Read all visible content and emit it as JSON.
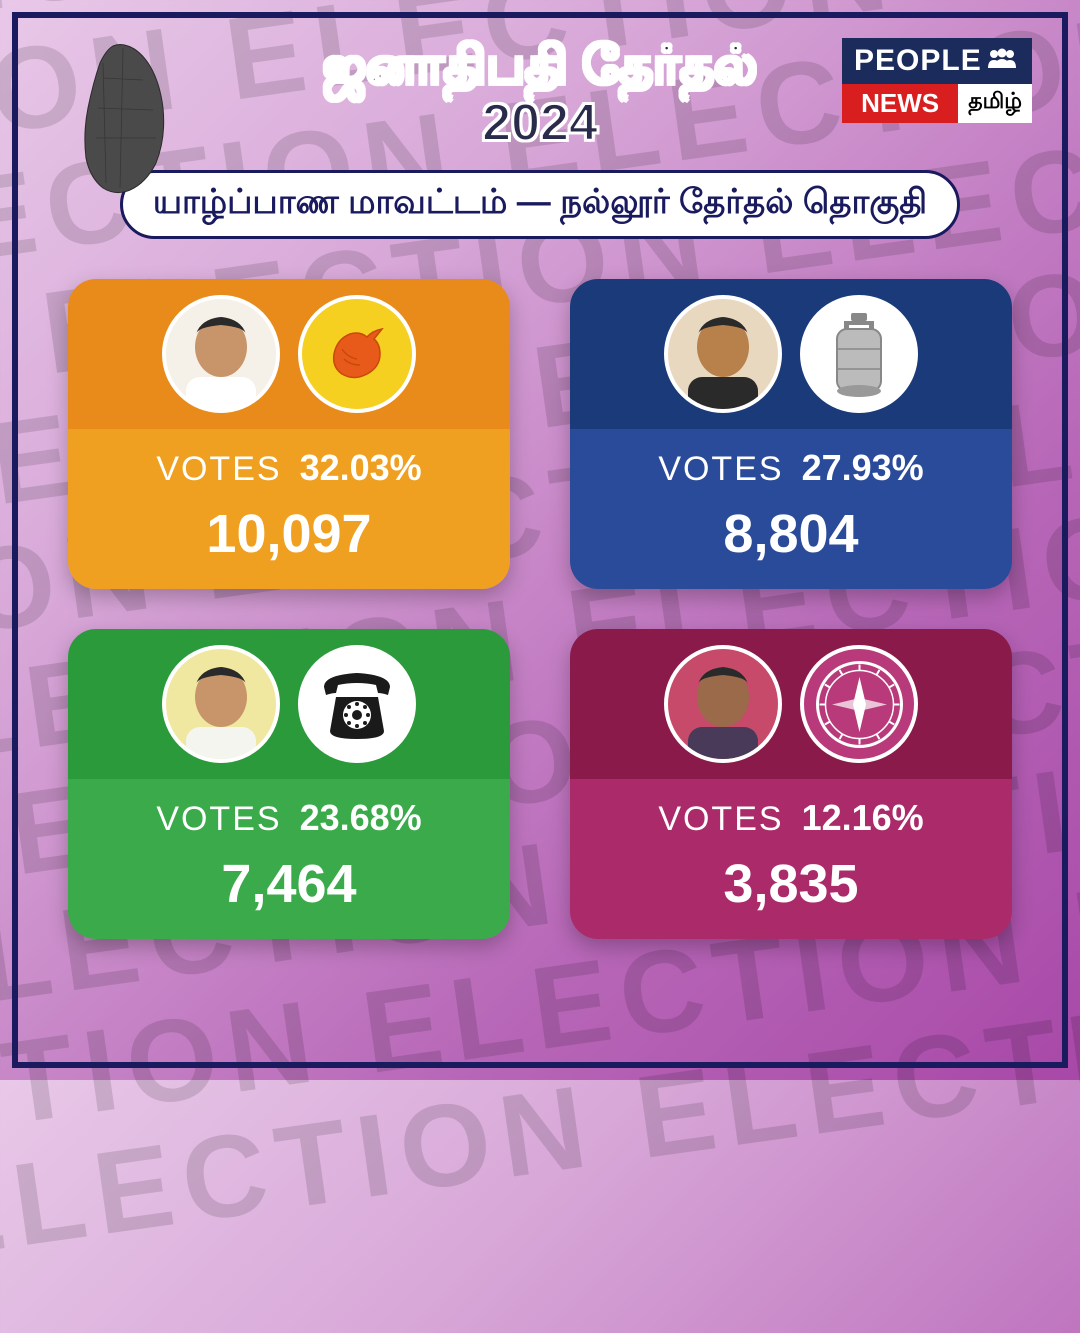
{
  "bg_word": "ELECTION",
  "frame_color": "#1a1a5e",
  "title_line1": "ஜனாதிபதி தேர்தல்",
  "title_line2": "2024",
  "subtitle": "யாழ்ப்பாண மாவட்டம்  —   நல்லூர் தேர்தல் தொகுதி",
  "logo": {
    "top": "PEOPLE",
    "bottom_left": "NEWS",
    "bottom_right": "தமிழ்",
    "top_bg": "#1a2b5c",
    "news_bg": "#d81e1e"
  },
  "votes_label": "VOTES",
  "cards": [
    {
      "head_bg": "#e88b1a",
      "body_bg": "#f0a020",
      "avatar_bg": "#f5f0e8",
      "avatar_skin": "#c8956a",
      "avatar_shirt": "#ffffff",
      "symbol_bg": "#f5d020",
      "symbol_name": "conch-shell-icon",
      "percent": "32.03%",
      "count": "10,097"
    },
    {
      "head_bg": "#1a3a7a",
      "body_bg": "#2a4a9a",
      "avatar_bg": "#e8d8c0",
      "avatar_skin": "#b8804a",
      "avatar_shirt": "#2a2a2a",
      "symbol_bg": "#ffffff",
      "symbol_name": "gas-cylinder-icon",
      "percent": "27.93%",
      "count": "8,804"
    },
    {
      "head_bg": "#2a9a3a",
      "body_bg": "#3aaa4a",
      "avatar_bg": "#f0e8a0",
      "avatar_skin": "#c8956a",
      "avatar_shirt": "#f5f5f0",
      "symbol_bg": "#ffffff",
      "symbol_name": "telephone-icon",
      "percent": "23.68%",
      "count": "7,464"
    },
    {
      "head_bg": "#8a1a4a",
      "body_bg": "#aa2a6a",
      "avatar_bg": "#c84a6a",
      "avatar_skin": "#9a6a4a",
      "avatar_shirt": "#4a3a5a",
      "symbol_bg": "#b83a7a",
      "symbol_name": "compass-icon",
      "percent": "12.16%",
      "count": "3,835"
    }
  ]
}
